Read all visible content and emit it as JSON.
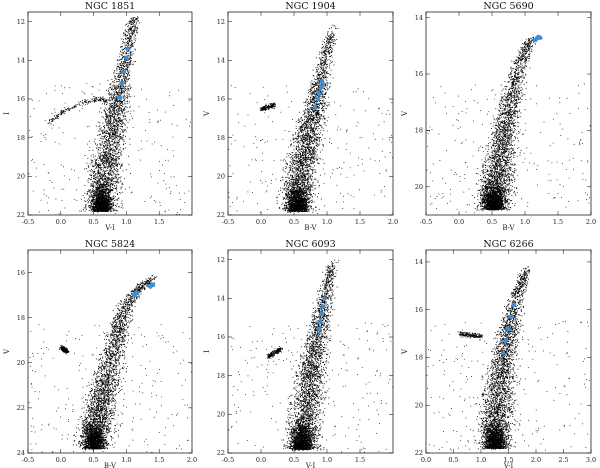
{
  "chart_data": [
    {
      "type": "scatter",
      "title": "NGC 1851",
      "xlabel": "V-I",
      "ylabel": "I",
      "xlim": [
        -0.5,
        2.0
      ],
      "ylim": [
        22,
        11.5
      ],
      "xticks": [
        "-0.5",
        "0.0",
        "0.5",
        "1.0",
        "1.5"
      ],
      "yticks": [
        "12",
        "14",
        "16",
        "18",
        "20",
        "22"
      ],
      "series": [
        {
          "role": "stars",
          "color": "#000000",
          "points": [
            [
              0.62,
              21.8
            ],
            [
              0.65,
              20.6
            ],
            [
              0.68,
              19.6
            ],
            [
              0.72,
              18.8
            ],
            [
              0.78,
              17.7
            ],
            [
              0.82,
              16.8
            ],
            [
              0.86,
              16.0
            ],
            [
              0.9,
              15.3
            ],
            [
              0.95,
              14.3
            ],
            [
              1.0,
              13.4
            ],
            [
              1.05,
              12.6
            ],
            [
              1.1,
              12.0
            ],
            [
              1.15,
              11.7
            ],
            [
              -0.2,
              17.2
            ],
            [
              0.05,
              16.6
            ],
            [
              0.3,
              16.2
            ],
            [
              0.55,
              16.0
            ],
            [
              0.7,
              16.1
            ]
          ]
        },
        {
          "role": "highlighted",
          "color": "#3a8fd8",
          "points": [
            [
              0.9,
              15.9
            ],
            [
              0.93,
              15.2
            ],
            [
              0.96,
              14.6
            ],
            [
              1.0,
              13.9
            ],
            [
              1.03,
              13.4
            ]
          ]
        }
      ]
    },
    {
      "type": "scatter",
      "title": "NGC 1904",
      "xlabel": "B-V",
      "ylabel": "V",
      "xlim": [
        -0.5,
        2.0
      ],
      "ylim": [
        22,
        11.5
      ],
      "xticks": [
        "-0.5",
        "0.0",
        "0.5",
        "1.0",
        "1.5",
        "2.0"
      ],
      "yticks": [
        "12",
        "14",
        "16",
        "18",
        "20",
        "22"
      ],
      "series": [
        {
          "role": "stars",
          "color": "#000000",
          "points": [
            [
              0.55,
              21.8
            ],
            [
              0.58,
              20.6
            ],
            [
              0.62,
              19.5
            ],
            [
              0.68,
              18.6
            ],
            [
              0.74,
              17.5
            ],
            [
              0.8,
              16.6
            ],
            [
              0.86,
              15.6
            ],
            [
              0.92,
              14.6
            ],
            [
              0.98,
              13.6
            ],
            [
              1.05,
              12.8
            ],
            [
              1.12,
              12.1
            ],
            [
              0.0,
              16.5
            ],
            [
              0.2,
              16.3
            ]
          ]
        },
        {
          "role": "highlighted",
          "color": "#3a8fd8",
          "points": [
            [
              0.82,
              16.4
            ],
            [
              0.85,
              16.0
            ],
            [
              0.88,
              15.7
            ],
            [
              0.91,
              15.4
            ],
            [
              0.93,
              15.1
            ]
          ]
        }
      ]
    },
    {
      "type": "scatter",
      "title": "NGC 5690",
      "xlabel": "B-V",
      "ylabel": "V",
      "xlim": [
        -0.5,
        2.0
      ],
      "ylim": [
        21,
        13.8
      ],
      "xticks": [
        "-0.5",
        "0.0",
        "0.5",
        "1.0",
        "1.5",
        "2.0"
      ],
      "yticks": [
        "14",
        "16",
        "18",
        "20"
      ],
      "series": [
        {
          "role": "stars",
          "color": "#000000",
          "points": [
            [
              0.52,
              20.8
            ],
            [
              0.56,
              20.0
            ],
            [
              0.6,
              19.2
            ],
            [
              0.66,
              18.3
            ],
            [
              0.74,
              17.4
            ],
            [
              0.82,
              16.5
            ],
            [
              0.92,
              15.6
            ],
            [
              1.02,
              15.0
            ],
            [
              1.12,
              14.7
            ],
            [
              0.05,
              17.2
            ]
          ]
        },
        {
          "role": "highlighted",
          "color": "#3a8fd8",
          "points": [
            [
              1.15,
              14.8
            ],
            [
              1.18,
              14.75
            ],
            [
              1.21,
              14.7
            ],
            [
              1.24,
              14.72
            ]
          ]
        }
      ]
    },
    {
      "type": "scatter",
      "title": "NGC 5824",
      "xlabel": "B-V",
      "ylabel": "V",
      "xlim": [
        -0.5,
        2.0
      ],
      "ylim": [
        24,
        15
      ],
      "xticks": [
        "-0.5",
        "0.0",
        "0.5",
        "1.0",
        "1.5",
        "2.0"
      ],
      "yticks": [
        "16",
        "18",
        "20",
        "22",
        "24"
      ],
      "series": [
        {
          "role": "stars",
          "color": "#000000",
          "points": [
            [
              0.5,
              23.8
            ],
            [
              0.55,
              22.8
            ],
            [
              0.6,
              22.0
            ],
            [
              0.66,
              21.2
            ],
            [
              0.74,
              20.2
            ],
            [
              0.82,
              19.2
            ],
            [
              0.9,
              18.3
            ],
            [
              1.0,
              17.4
            ],
            [
              1.15,
              16.8
            ],
            [
              1.3,
              16.4
            ],
            [
              1.45,
              16.1
            ],
            [
              0.0,
              19.3
            ],
            [
              0.1,
              19.5
            ]
          ]
        },
        {
          "role": "highlighted",
          "color": "#3a8fd8",
          "points": [
            [
              1.12,
              17.0
            ],
            [
              1.16,
              16.9
            ],
            [
              1.35,
              16.6
            ],
            [
              1.4,
              16.55
            ]
          ]
        }
      ]
    },
    {
      "type": "scatter",
      "title": "NGC 6093",
      "xlabel": "V-I",
      "ylabel": "I",
      "xlim": [
        -0.5,
        2.0
      ],
      "ylim": [
        22,
        11.5
      ],
      "xticks": [
        "-0.5",
        "0.0",
        "0.5",
        "1.0",
        "1.5"
      ],
      "yticks": [
        "12",
        "14",
        "16",
        "18",
        "20",
        "22"
      ],
      "series": [
        {
          "role": "stars",
          "color": "#000000",
          "points": [
            [
              0.62,
              21.8
            ],
            [
              0.66,
              20.6
            ],
            [
              0.7,
              19.4
            ],
            [
              0.75,
              18.2
            ],
            [
              0.8,
              17.0
            ],
            [
              0.86,
              15.8
            ],
            [
              0.92,
              14.6
            ],
            [
              0.98,
              13.6
            ],
            [
              1.05,
              12.6
            ],
            [
              1.12,
              11.9
            ],
            [
              0.1,
              17.0
            ],
            [
              0.3,
              16.6
            ]
          ]
        },
        {
          "role": "highlighted",
          "color": "#3a8fd8",
          "points": [
            [
              0.88,
              15.6
            ],
            [
              0.9,
              15.2
            ],
            [
              0.92,
              14.8
            ],
            [
              0.94,
              14.4
            ],
            [
              0.96,
              14.0
            ]
          ]
        }
      ]
    },
    {
      "type": "scatter",
      "title": "NGC 6266",
      "xlabel": "V-I",
      "ylabel": "V",
      "xlim": [
        0.0,
        3.0
      ],
      "ylim": [
        22,
        13.5
      ],
      "xticks": [
        "0.0",
        "0.5",
        "1.0",
        "1.5",
        "2.0",
        "2.5",
        "3.0"
      ],
      "yticks": [
        "14",
        "16",
        "18",
        "20",
        "22"
      ],
      "series": [
        {
          "role": "stars",
          "color": "#000000",
          "points": [
            [
              1.25,
              21.8
            ],
            [
              1.28,
              20.6
            ],
            [
              1.32,
              19.5
            ],
            [
              1.38,
              18.4
            ],
            [
              1.45,
              17.4
            ],
            [
              1.55,
              16.4
            ],
            [
              1.65,
              15.4
            ],
            [
              1.75,
              14.7
            ],
            [
              1.85,
              14.2
            ],
            [
              0.6,
              17.0
            ],
            [
              1.0,
              17.1
            ]
          ]
        },
        {
          "role": "highlighted",
          "color": "#3a8fd8",
          "points": [
            [
              1.4,
              17.8
            ],
            [
              1.45,
              17.3
            ],
            [
              1.5,
              16.8
            ],
            [
              1.55,
              16.3
            ],
            [
              1.6,
              15.8
            ]
          ]
        }
      ]
    }
  ]
}
